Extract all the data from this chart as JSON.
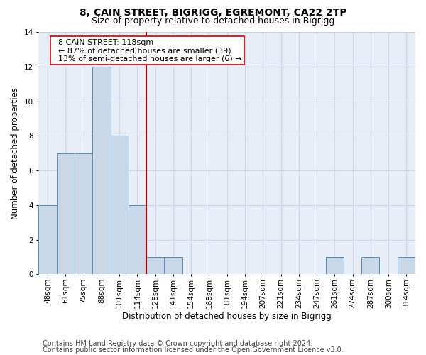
{
  "title1": "8, CAIN STREET, BIGRIGG, EGREMONT, CA22 2TP",
  "title2": "Size of property relative to detached houses in Bigrigg",
  "xlabel": "Distribution of detached houses by size in Bigrigg",
  "ylabel": "Number of detached properties",
  "categories": [
    "48sqm",
    "61sqm",
    "75sqm",
    "88sqm",
    "101sqm",
    "114sqm",
    "128sqm",
    "141sqm",
    "154sqm",
    "168sqm",
    "181sqm",
    "194sqm",
    "207sqm",
    "221sqm",
    "234sqm",
    "247sqm",
    "261sqm",
    "274sqm",
    "287sqm",
    "300sqm",
    "314sqm"
  ],
  "values": [
    4,
    7,
    7,
    12,
    8,
    4,
    1,
    1,
    0,
    0,
    0,
    0,
    0,
    0,
    0,
    0,
    1,
    0,
    1,
    0,
    1
  ],
  "bar_color": "#c8d8e8",
  "bar_edge_color": "#5b8db8",
  "vline_x": 5.5,
  "vline_color": "#aa0000",
  "annotation_text": "  8 CAIN STREET: 118sqm\n  ← 87% of detached houses are smaller (39)\n  13% of semi-detached houses are larger (6) →",
  "annotation_box_color": "#ffffff",
  "annotation_box_edge_color": "#cc0000",
  "ylim": [
    0,
    14
  ],
  "yticks": [
    0,
    2,
    4,
    6,
    8,
    10,
    12,
    14
  ],
  "footnote1": "Contains HM Land Registry data © Crown copyright and database right 2024.",
  "footnote2": "Contains public sector information licensed under the Open Government Licence v3.0.",
  "grid_color": "#d0d8e8",
  "bg_color": "#e8eef8",
  "title1_fontsize": 10,
  "title2_fontsize": 9,
  "xlabel_fontsize": 8.5,
  "ylabel_fontsize": 8.5,
  "tick_fontsize": 7.5,
  "footnote_fontsize": 7,
  "ann_fontsize": 8
}
